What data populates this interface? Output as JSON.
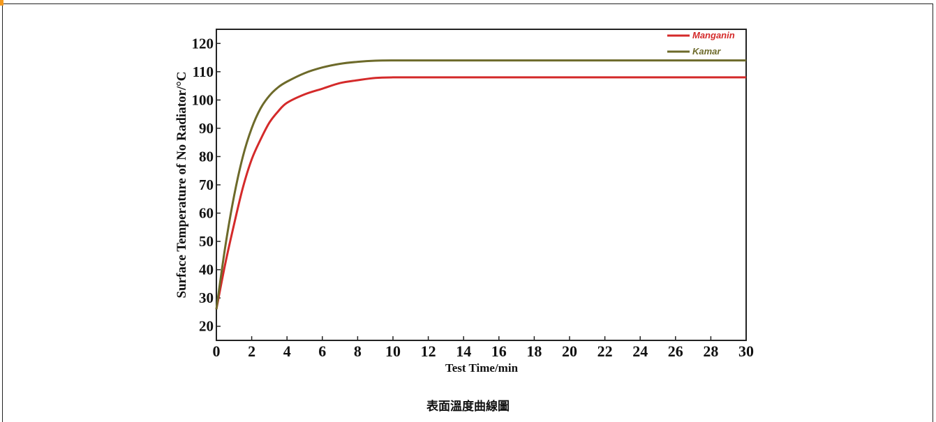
{
  "caption": "表面溫度曲線圖",
  "colors": {
    "manganin": "#d42a2a",
    "kamar": "#6d6a2a"
  },
  "chart_data": {
    "type": "line",
    "title": "",
    "xlabel": "Test Time/min",
    "ylabel": "Surface Temperature of No Radiator/°C",
    "xlim": [
      0,
      30
    ],
    "ylim": [
      15,
      125
    ],
    "xticks": [
      0,
      2,
      4,
      6,
      8,
      10,
      12,
      14,
      16,
      18,
      20,
      22,
      24,
      26,
      28,
      30
    ],
    "yticks": [
      20,
      30,
      40,
      50,
      60,
      70,
      80,
      90,
      100,
      110,
      120
    ],
    "grid": false,
    "legend_position": "top-right",
    "series": [
      {
        "name": "Manganin",
        "x": [
          0,
          0.5,
          1,
          1.5,
          2,
          2.5,
          3,
          3.5,
          4,
          5,
          6,
          7,
          8,
          9,
          10,
          12,
          15,
          20,
          25,
          30
        ],
        "y": [
          26,
          42,
          56,
          69,
          79,
          86,
          92,
          96,
          99,
          102,
          104,
          106,
          107,
          107.8,
          108,
          108,
          108,
          108,
          108,
          108
        ]
      },
      {
        "name": "Kamar",
        "x": [
          0,
          0.5,
          1,
          1.5,
          2,
          2.5,
          3,
          3.5,
          4,
          5,
          6,
          7,
          8,
          9,
          10,
          12,
          15,
          20,
          25,
          30
        ],
        "y": [
          26,
          48,
          66,
          80,
          90,
          97,
          101.5,
          104.5,
          106.5,
          109.5,
          111.5,
          112.8,
          113.5,
          113.9,
          114,
          114,
          114,
          114,
          114,
          114
        ]
      }
    ]
  }
}
